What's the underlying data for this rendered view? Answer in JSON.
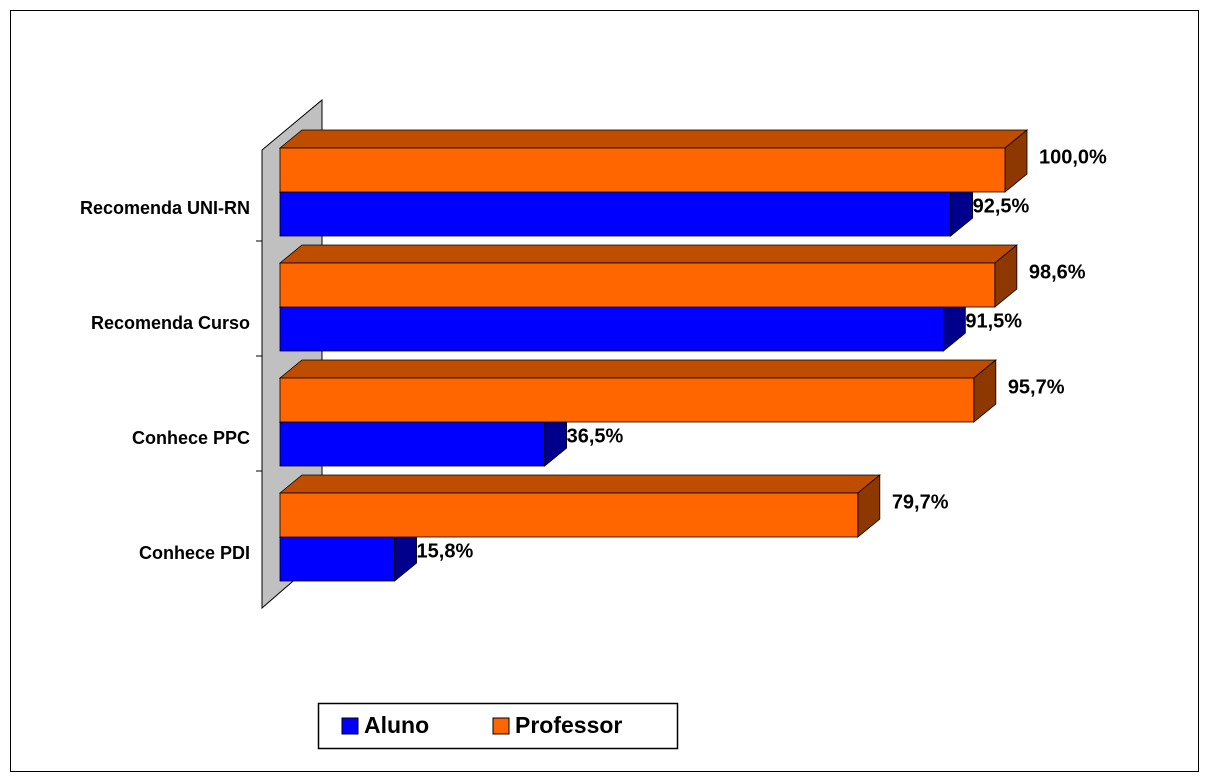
{
  "chart_data": {
    "type": "bar3d-horizontal",
    "categories": [
      "Recomenda UNI-RN",
      "Recomenda Curso",
      "Conhece PPC",
      "Conhece PDI"
    ],
    "series": [
      {
        "name": "Aluno",
        "color": "#0000ff",
        "values": [
          92.5,
          91.5,
          36.5,
          15.8
        ],
        "value_labels": [
          "92,5%",
          "91,5%",
          "36,5%",
          "15,8%"
        ]
      },
      {
        "name": "Professor",
        "color": "#ff6600",
        "values": [
          100,
          98.6,
          95.7,
          79.7
        ],
        "value_labels": [
          "100,0%",
          "98,6%",
          "95,7%",
          "79,7%"
        ]
      }
    ],
    "xlim": [
      0,
      100
    ],
    "legend": "bottom"
  }
}
